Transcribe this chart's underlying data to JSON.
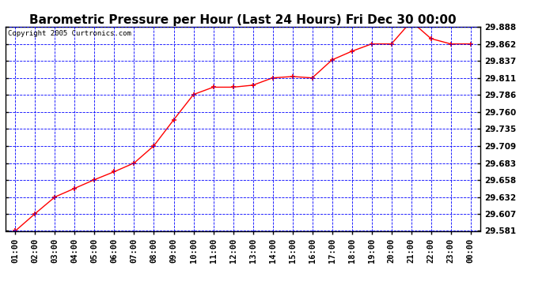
{
  "title": "Barometric Pressure per Hour (Last 24 Hours) Fri Dec 30 00:00",
  "copyright": "Copyright 2005 Curtronics.com",
  "x_labels": [
    "01:00",
    "02:00",
    "03:00",
    "04:00",
    "05:00",
    "06:00",
    "07:00",
    "08:00",
    "09:00",
    "10:00",
    "11:00",
    "12:00",
    "13:00",
    "14:00",
    "15:00",
    "16:00",
    "17:00",
    "18:00",
    "19:00",
    "20:00",
    "21:00",
    "22:00",
    "23:00",
    "00:00"
  ],
  "y_values": [
    29.581,
    29.607,
    29.632,
    29.645,
    29.658,
    29.67,
    29.683,
    29.709,
    29.748,
    29.786,
    29.797,
    29.797,
    29.8,
    29.811,
    29.813,
    29.811,
    29.838,
    29.851,
    29.862,
    29.862,
    29.896,
    29.87,
    29.862,
    29.862
  ],
  "ylim_min": 29.581,
  "ylim_max": 29.888,
  "y_ticks": [
    29.581,
    29.607,
    29.632,
    29.658,
    29.683,
    29.709,
    29.735,
    29.76,
    29.786,
    29.811,
    29.837,
    29.862,
    29.888
  ],
  "line_color": "red",
  "marker": "+",
  "bg_color": "#ffffff",
  "plot_bg": "#ffffff",
  "grid_color": "blue",
  "title_fontsize": 11,
  "tick_fontsize": 7.5,
  "tick_fontweight": "bold",
  "copyright_fontsize": 6.5
}
